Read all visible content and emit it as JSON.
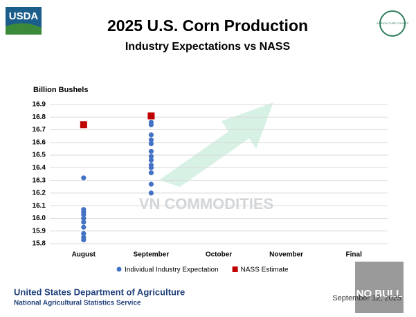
{
  "header": {
    "logo": "USDA",
    "seal": "AGRICULTURE COUNTS"
  },
  "chart_data": {
    "type": "scatter",
    "title": "2025 U.S. Corn Production",
    "subtitle": "Industry Expectations vs NASS",
    "y_label": "Billion Bushels",
    "categories": [
      "August",
      "September",
      "October",
      "November",
      "Final"
    ],
    "ylim": [
      15.8,
      16.9
    ],
    "yticks": [
      15.8,
      15.9,
      {
        "value": 16,
        "label": "16.0"
      },
      16.1,
      16.2,
      16.3,
      16.4,
      16.5,
      16.6,
      16.7,
      16.8,
      16.9
    ],
    "grid": true,
    "series": [
      {
        "name": "Individual Industry Expectation",
        "color": "#4472c4",
        "marker": "circle",
        "values": [
          [
            16.32,
            16.07,
            16.05,
            16.03,
            16.0,
            15.97,
            15.93,
            15.88,
            15.85,
            15.83
          ],
          [
            16.76,
            16.74,
            16.66,
            16.62,
            16.59,
            16.53,
            16.49,
            16.46,
            16.42,
            16.4,
            16.36,
            16.27,
            16.2
          ],
          [],
          [],
          []
        ]
      },
      {
        "name": "NASS Estimate",
        "color": "#c00000",
        "marker": "square",
        "values": [
          16.74,
          16.81,
          null,
          null,
          null
        ]
      }
    ],
    "legend": "bottom"
  },
  "watermark": "VN COMMODITIES",
  "badge": "NO BULL",
  "footer": {
    "org": "United States Department of Agriculture",
    "agency": "National Agricultural Statistics Service",
    "date": "September 12, 2025"
  }
}
